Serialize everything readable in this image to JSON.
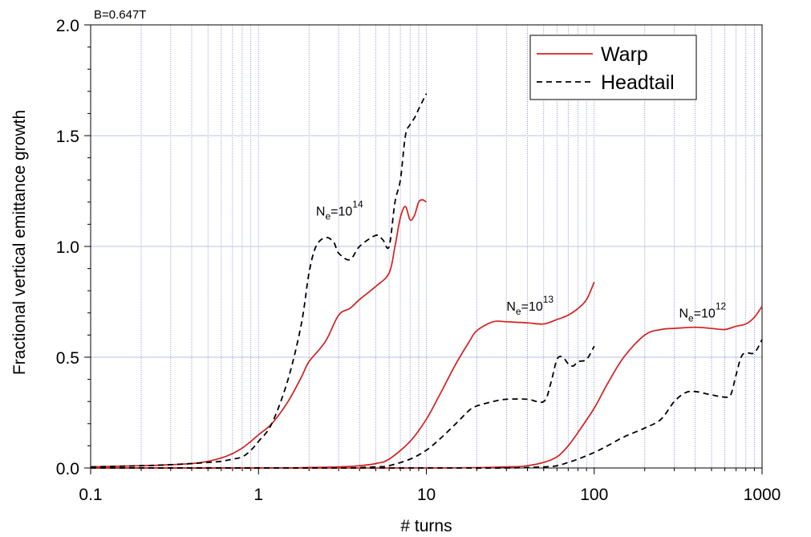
{
  "chart_data": {
    "type": "line",
    "annotation_top": "B=0.647T",
    "xlabel": "# turns",
    "ylabel": "Fractional vertical emittance growth",
    "xscale": "log",
    "xlim": [
      0.1,
      1000
    ],
    "ylim": [
      0,
      2.0
    ],
    "x_ticks": [
      {
        "value": 0.1,
        "label": "0.1"
      },
      {
        "value": 1,
        "label": "1"
      },
      {
        "value": 10,
        "label": "10"
      },
      {
        "value": 100,
        "label": "100"
      },
      {
        "value": 1000,
        "label": "1000"
      }
    ],
    "y_ticks": [
      {
        "value": 0.0,
        "label": "0.0"
      },
      {
        "value": 0.5,
        "label": "0.5"
      },
      {
        "value": 1.0,
        "label": "1.0"
      },
      {
        "value": 1.5,
        "label": "1.5"
      },
      {
        "value": 2.0,
        "label": "2.0"
      }
    ],
    "grid": true,
    "legend": {
      "placement": "top-right",
      "entries": [
        {
          "name": "Warp",
          "color": "#d42020",
          "dash": "solid"
        },
        {
          "name": "Headtail",
          "color": "#000000",
          "dash": "dashed"
        }
      ]
    },
    "series": [
      {
        "group": "1e14",
        "legend": "Warp",
        "color": "#d42020",
        "dash": "solid",
        "x": [
          0.1,
          0.2,
          0.3,
          0.4,
          0.5,
          0.6,
          0.7,
          0.8,
          0.9,
          1.0,
          1.2,
          1.5,
          1.8,
          2.0,
          2.5,
          3.0,
          3.5,
          4.0,
          5.0,
          6.0,
          6.5,
          7.0,
          7.5,
          8.0,
          8.5,
          9.0,
          9.5,
          10.0
        ],
        "y": [
          0.005,
          0.01,
          0.015,
          0.02,
          0.03,
          0.045,
          0.065,
          0.09,
          0.12,
          0.15,
          0.2,
          0.3,
          0.41,
          0.48,
          0.57,
          0.69,
          0.72,
          0.76,
          0.82,
          0.88,
          1.0,
          1.13,
          1.18,
          1.12,
          1.14,
          1.2,
          1.21,
          1.2
        ]
      },
      {
        "group": "1e14",
        "legend": "Headtail",
        "color": "#000000",
        "dash": "dashed",
        "x": [
          0.1,
          0.2,
          0.3,
          0.4,
          0.5,
          0.6,
          0.7,
          0.8,
          0.9,
          1.0,
          1.2,
          1.5,
          1.8,
          2.0,
          2.2,
          2.5,
          2.8,
          3.0,
          3.5,
          4.0,
          5.0,
          5.5,
          6.0,
          6.5,
          7.0,
          7.5,
          8.0,
          8.5,
          9.0,
          10.0
        ],
        "y": [
          0.005,
          0.01,
          0.015,
          0.02,
          0.025,
          0.03,
          0.04,
          0.05,
          0.08,
          0.12,
          0.2,
          0.4,
          0.65,
          0.88,
          1.0,
          1.04,
          1.02,
          0.97,
          0.94,
          1.0,
          1.05,
          1.03,
          1.0,
          1.2,
          1.3,
          1.5,
          1.55,
          1.58,
          1.62,
          1.69
        ]
      },
      {
        "group": "1e13",
        "legend": "Warp",
        "color": "#d42020",
        "dash": "solid",
        "x": [
          0.1,
          1.0,
          2.0,
          3.0,
          4.0,
          5.0,
          6.0,
          8.0,
          10.0,
          12.0,
          15.0,
          18.0,
          20.0,
          25.0,
          30.0,
          40.0,
          50.0,
          60.0,
          70.0,
          80.0,
          90.0,
          100.0
        ],
        "y": [
          0.0,
          0.0,
          0.002,
          0.005,
          0.01,
          0.02,
          0.04,
          0.12,
          0.22,
          0.33,
          0.47,
          0.57,
          0.62,
          0.66,
          0.66,
          0.655,
          0.65,
          0.67,
          0.69,
          0.72,
          0.76,
          0.84
        ]
      },
      {
        "group": "1e13",
        "legend": "Headtail",
        "color": "#000000",
        "dash": "dashed",
        "x": [
          0.1,
          1.0,
          3.0,
          5.0,
          6.0,
          8.0,
          10.0,
          12.0,
          15.0,
          18.0,
          20.0,
          25.0,
          30.0,
          40.0,
          50.0,
          55.0,
          60.0,
          65.0,
          70.0,
          75.0,
          80.0,
          90.0,
          100.0
        ],
        "y": [
          0.0,
          0.0,
          0.0,
          0.005,
          0.01,
          0.04,
          0.08,
          0.13,
          0.2,
          0.26,
          0.28,
          0.3,
          0.31,
          0.31,
          0.3,
          0.38,
          0.49,
          0.5,
          0.47,
          0.46,
          0.48,
          0.49,
          0.55
        ]
      },
      {
        "group": "1e12",
        "legend": "Warp",
        "color": "#d42020",
        "dash": "solid",
        "x": [
          0.1,
          10.0,
          30.0,
          40.0,
          50.0,
          60.0,
          70.0,
          80.0,
          100.0,
          120.0,
          150.0,
          200.0,
          250.0,
          300.0,
          400.0,
          500.0,
          600.0,
          700.0,
          800.0,
          900.0,
          1000.0
        ],
        "y": [
          0.0,
          0.0,
          0.005,
          0.01,
          0.025,
          0.05,
          0.1,
          0.16,
          0.27,
          0.38,
          0.5,
          0.6,
          0.625,
          0.63,
          0.635,
          0.63,
          0.625,
          0.64,
          0.65,
          0.68,
          0.73
        ]
      },
      {
        "group": "1e12",
        "legend": "Headtail",
        "color": "#000000",
        "dash": "dashed",
        "x": [
          0.1,
          10.0,
          30.0,
          50.0,
          60.0,
          70.0,
          80.0,
          100.0,
          120.0,
          150.0,
          200.0,
          250.0,
          300.0,
          350.0,
          400.0,
          500.0,
          600.0,
          650.0,
          700.0,
          750.0,
          800.0,
          900.0,
          1000.0
        ],
        "y": [
          0.0,
          0.0,
          0.0,
          0.005,
          0.01,
          0.025,
          0.04,
          0.07,
          0.1,
          0.14,
          0.18,
          0.22,
          0.3,
          0.34,
          0.345,
          0.33,
          0.32,
          0.33,
          0.42,
          0.5,
          0.52,
          0.52,
          0.58
        ]
      }
    ],
    "annotations": [
      {
        "base": "N",
        "sub": "e",
        "mid": "=10",
        "sup": "14",
        "x": 2.2,
        "y": 1.14
      },
      {
        "base": "N",
        "sub": "e",
        "mid": "=10",
        "sup": "13",
        "x": 30,
        "y": 0.71
      },
      {
        "base": "N",
        "sub": "e",
        "mid": "=10",
        "sup": "12",
        "x": 320,
        "y": 0.68
      }
    ]
  }
}
